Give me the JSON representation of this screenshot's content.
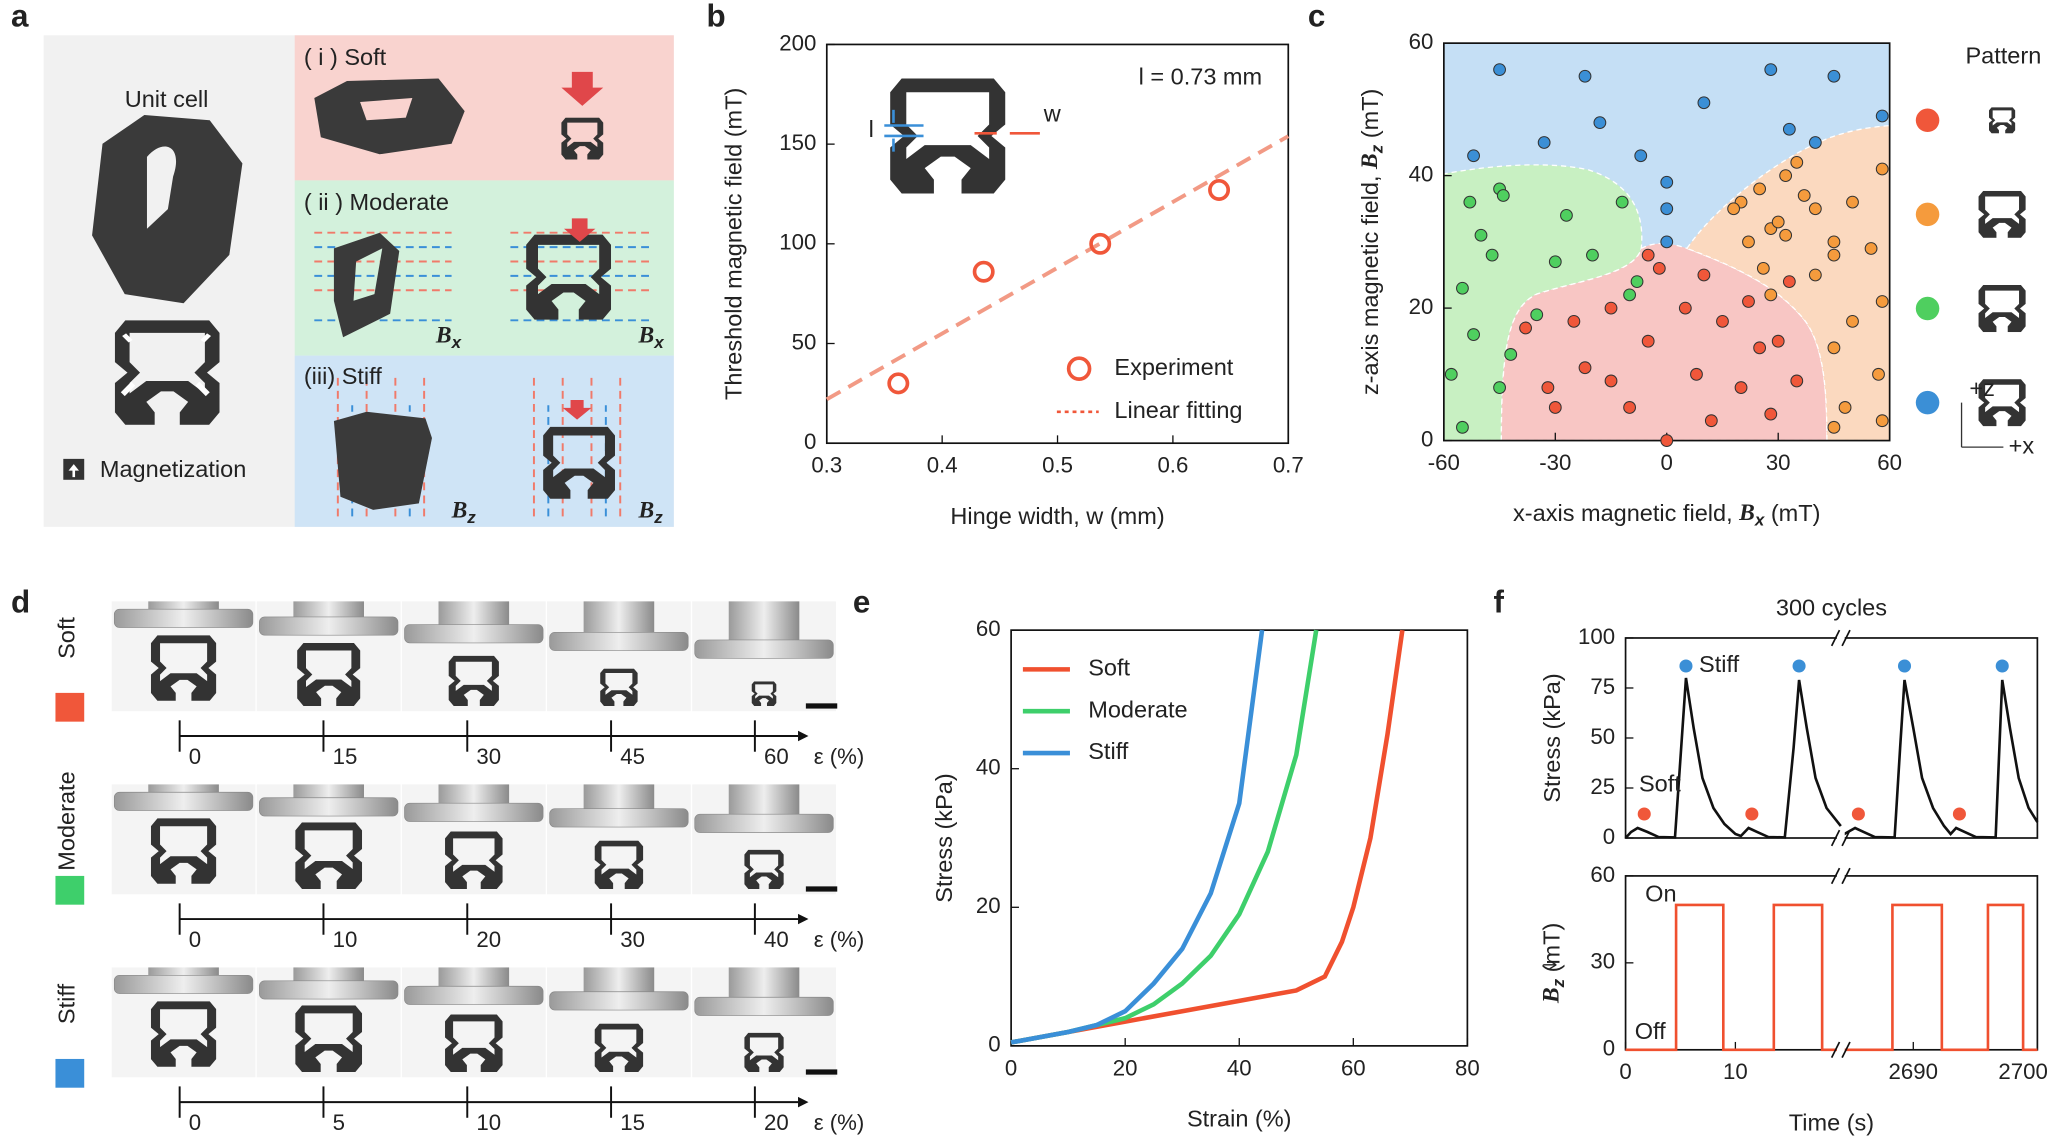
{
  "panel_labels": [
    "a",
    "b",
    "c",
    "d",
    "e",
    "f"
  ],
  "panel_a": {
    "unit_cell": "Unit cell",
    "magnetization": "Magnetization",
    "modes": [
      "( i ) Soft",
      "( ii ) Moderate",
      "(iii) Stiff"
    ],
    "field_labels": [
      {
        "symbol": "B",
        "sub": "x"
      },
      {
        "symbol": "B",
        "sub": "x"
      },
      {
        "symbol": "B",
        "sub": "z"
      },
      {
        "symbol": "B",
        "sub": "z"
      }
    ]
  },
  "panel_d": {
    "axis_label": "ε (%)",
    "rows": [
      {
        "label": "Soft",
        "color": "#f0573a",
        "ticks": [
          0,
          15,
          30,
          45,
          60
        ]
      },
      {
        "label": "Moderate",
        "color": "#3ecf6b",
        "ticks": [
          0,
          10,
          20,
          30,
          40
        ]
      },
      {
        "label": "Stiff",
        "color": "#3a8fd8",
        "ticks": [
          0,
          5,
          10,
          15,
          20
        ]
      }
    ]
  },
  "chart_data": [
    {
      "type": "scatter",
      "xlabel": "Hinge width, w (mm)",
      "ylabel": "Threshold magnetic field (mT)",
      "xlim": [
        0.3,
        0.7
      ],
      "xticks": [
        0.3,
        0.4,
        0.5,
        0.6,
        0.7
      ],
      "ylim": [
        0,
        200
      ],
      "yticks": [
        0,
        50,
        100,
        150,
        200
      ],
      "annotation": "l = 0.73 mm",
      "inset_labels": [
        "l",
        "w"
      ],
      "legend": "lower right",
      "series": [
        {
          "name": "Experiment",
          "color": "#f0573a",
          "kind": "marker",
          "x": [
            0.362,
            0.436,
            0.537,
            0.64
          ],
          "values": [
            30,
            86,
            100,
            127
          ]
        },
        {
          "name": "Linear fitting",
          "color": "#f29a85",
          "kind": "line",
          "x": [
            0.3,
            0.7
          ],
          "values": [
            22,
            154
          ]
        }
      ]
    },
    {
      "type": "scatter",
      "xlabel": {
        "text": "x-axis magnetic field, ",
        "symbol": "B",
        "sub": "x",
        "unit": " (mT)"
      },
      "ylabel": {
        "text": "z-axis magnetic field, ",
        "symbol": "B",
        "sub": "z",
        "unit": " (mT)"
      },
      "xlim": [
        -60,
        60
      ],
      "xticks": [
        -60,
        -30,
        0,
        30,
        60
      ],
      "ylim": [
        0,
        60
      ],
      "yticks": [
        0,
        20,
        40,
        60
      ],
      "legend_title": "Pattern",
      "legend_axes": [
        "+z",
        "+x"
      ],
      "series": [
        {
          "color": "#f0573a",
          "kind": "marker",
          "x": [
            -38,
            -32,
            -30,
            -25,
            -22,
            -15,
            -10,
            -5,
            0,
            5,
            8,
            10,
            15,
            20,
            22,
            25,
            30,
            35,
            33,
            -2,
            -15,
            28,
            -5,
            12
          ],
          "values": [
            17,
            8,
            5,
            18,
            11,
            20,
            5,
            15,
            0,
            20,
            10,
            25,
            18,
            8,
            21,
            14,
            15,
            9,
            24,
            26,
            9,
            4,
            28,
            3
          ]
        },
        {
          "color": "#f59b3d",
          "kind": "marker",
          "x": [
            20,
            25,
            28,
            30,
            32,
            35,
            37,
            40,
            45,
            50,
            58,
            28,
            26,
            22,
            18,
            32,
            45,
            55,
            58,
            50,
            57,
            45,
            48,
            45,
            58,
            40
          ],
          "values": [
            36,
            38,
            32,
            33,
            40,
            42,
            37,
            35,
            30,
            36,
            41,
            22,
            26,
            30,
            35,
            31,
            28,
            29,
            21,
            18,
            10,
            14,
            5,
            2,
            3,
            25
          ]
        },
        {
          "color": "#4fcf5f",
          "kind": "marker",
          "x": [
            -58,
            -55,
            -53,
            -50,
            -45,
            -44,
            -52,
            -45,
            -47,
            -55,
            -27,
            -20,
            -12,
            -8,
            -10,
            -35,
            -42,
            -30
          ],
          "values": [
            10,
            23,
            36,
            31,
            38,
            37,
            16,
            8,
            28,
            2,
            34,
            28,
            36,
            24,
            22,
            19,
            13,
            27
          ]
        },
        {
          "color": "#3b8fd6",
          "kind": "marker",
          "x": [
            -45,
            -22,
            -52,
            -33,
            -18,
            -7,
            10,
            28,
            45,
            33,
            58,
            0,
            0,
            0,
            40
          ],
          "values": [
            56,
            55,
            43,
            45,
            48,
            43,
            51,
            56,
            55,
            47,
            49,
            39,
            35,
            30,
            45
          ]
        }
      ]
    },
    {
      "type": "line",
      "xlabel": "Strain (%)",
      "ylabel": "Stress (kPa)",
      "xlim": [
        0,
        80
      ],
      "xticks": [
        0,
        20,
        40,
        60,
        80
      ],
      "ylim": [
        0,
        60
      ],
      "yticks": [
        0,
        20,
        40,
        60
      ],
      "legend": "upper left",
      "series": [
        {
          "name": "Soft",
          "color": "#f0502f",
          "x": [
            0,
            10,
            20,
            30,
            40,
            50,
            55,
            58,
            60,
            63,
            66,
            68.6
          ],
          "values": [
            0.5,
            2,
            3.5,
            5,
            6.5,
            8,
            10,
            15,
            20,
            30,
            45,
            60
          ]
        },
        {
          "name": "Moderate",
          "color": "#3ecf6b",
          "x": [
            0,
            10,
            20,
            25,
            30,
            35,
            40,
            45,
            50,
            53.5
          ],
          "values": [
            0.5,
            2,
            4,
            6,
            9,
            13,
            19,
            28,
            42,
            60
          ]
        },
        {
          "name": "Stiff",
          "color": "#3a8fd8",
          "x": [
            0,
            10,
            15,
            20,
            25,
            30,
            35,
            40,
            44
          ],
          "values": [
            0.5,
            2,
            3,
            5,
            9,
            14,
            22,
            35,
            60
          ]
        }
      ]
    },
    {
      "type": "line",
      "title": "300 cycles",
      "ylabel": "Stress (kPa)",
      "xlim": [
        0,
        2701.3
      ],
      "xbreak": [
        19.6,
        2683.4
      ],
      "ylim": [
        0,
        100
      ],
      "yticks": [
        0,
        25,
        50,
        75,
        100
      ],
      "series": [
        {
          "color": "#111111",
          "kind": "line",
          "x": [
            0,
            0.5,
            1.1,
            2,
            3,
            4.5,
            5,
            5.5,
            6.2,
            7,
            8,
            9,
            10,
            10.5,
            11.2,
            12,
            13,
            14.5,
            15.3,
            15.8,
            16.5,
            17.3,
            18.3,
            19.6,
            null,
            2683.4,
            2684.7,
            2685.5,
            2686.5,
            2688.3,
            2688.8,
            2689.2,
            2690,
            2690.8,
            2691.8,
            2692.8,
            2693.4,
            2693.9,
            2694.7,
            2695.7,
            2697.5,
            2697.8,
            2698.1,
            2698.8,
            2699.6,
            2700.5,
            2701.3
          ],
          "values": [
            0,
            3,
            5,
            3,
            0.5,
            0.3,
            40,
            80,
            55,
            30,
            15,
            7,
            2,
            1,
            5,
            3,
            0.5,
            0.3,
            45,
            79,
            55,
            30,
            15,
            6,
            null,
            1,
            5,
            3,
            0.5,
            0.3,
            45,
            79,
            55,
            30,
            15,
            6,
            2,
            5,
            3,
            0.5,
            0.3,
            40,
            79,
            55,
            30,
            15,
            8
          ]
        },
        {
          "name": "Stiff",
          "color": "#3b8fd6",
          "kind": "marker",
          "x": [
            5.5,
            15.8,
            2689.2,
            2698.1
          ],
          "values": [
            86,
            86,
            86,
            86
          ]
        },
        {
          "name": "Soft",
          "color": "#f0573a",
          "kind": "marker",
          "x": [
            1.7,
            11.5,
            2685,
            2694.2
          ],
          "values": [
            12,
            12,
            12,
            12
          ]
        }
      ]
    },
    {
      "type": "line",
      "xlabel": "Time (s)",
      "ylabel": {
        "symbol": "B",
        "sub": "z",
        "unit": " (mT)"
      },
      "xlim": [
        0,
        2701.3
      ],
      "xbreak": [
        19.6,
        2683.4
      ],
      "xticks": [
        0,
        10,
        2690,
        2700
      ],
      "ylim": [
        0,
        60
      ],
      "yticks": [
        0,
        30,
        60
      ],
      "annotations": [
        "On",
        "Off"
      ],
      "series": [
        {
          "color": "#f0502f",
          "kind": "line",
          "x": [
            0,
            4.6,
            4.6,
            8.9,
            8.9,
            13.5,
            13.5,
            17.9,
            17.9,
            19.6,
            null,
            2683.4,
            2688.1,
            2688.1,
            2692.6,
            2692.6,
            2696.8,
            2696.8,
            2700,
            2700,
            2701.3
          ],
          "values": [
            0,
            0,
            50,
            50,
            0,
            0,
            50,
            50,
            0,
            0,
            null,
            0,
            0,
            50,
            50,
            0,
            0,
            50,
            50,
            0,
            0
          ]
        }
      ]
    }
  ]
}
